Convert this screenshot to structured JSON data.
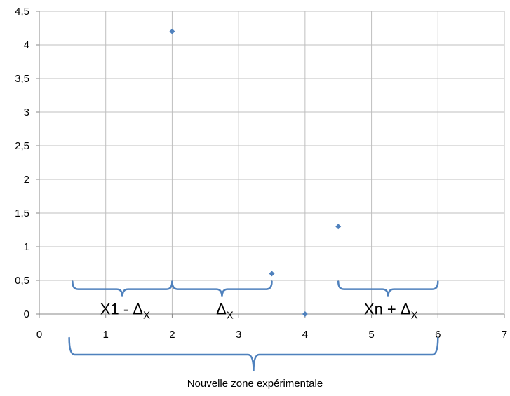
{
  "chart_data": {
    "type": "scatter",
    "title": "",
    "xlabel": "",
    "ylabel": "",
    "xlim": [
      0,
      7
    ],
    "ylim": [
      0,
      4.5
    ],
    "x_ticks": [
      0,
      1,
      2,
      3,
      4,
      5,
      6,
      7
    ],
    "y_ticks": [
      0,
      0.5,
      1,
      1.5,
      2,
      2.5,
      3,
      3.5,
      4,
      4.5
    ],
    "x_tick_labels": [
      "0",
      "1",
      "2",
      "3",
      "4",
      "5",
      "6",
      "7"
    ],
    "y_tick_labels": [
      "0",
      "0,5",
      "1",
      "1,5",
      "2",
      "2,5",
      "3",
      "3,5",
      "4",
      "4,5"
    ],
    "grid": "vertical and horizontal",
    "marker": "diamond",
    "colors": {
      "points": "#4f81bd",
      "braces": "#4f81bd",
      "grid": "#bfbfbf"
    },
    "series": [
      {
        "x": [
          2,
          3.5,
          4,
          4.5
        ],
        "y": [
          4.2,
          0.6,
          0,
          1.3
        ]
      }
    ],
    "annotations": [
      {
        "type": "brace",
        "x_start": 0.5,
        "x_end": 2,
        "y": 0.4,
        "text": "X1 - Δ",
        "subscript": "X"
      },
      {
        "type": "brace",
        "x_start": 2,
        "x_end": 3.5,
        "y": 0.4,
        "text": "Δ",
        "subscript": "X"
      },
      {
        "type": "brace",
        "x_start": 4.5,
        "x_end": 6,
        "y": 0.4,
        "text": "Xn + Δ",
        "subscript": "X"
      }
    ],
    "bottom_brace": {
      "x_start": 0.45,
      "x_end": 6,
      "text": "Nouvelle zone expérimentale"
    }
  }
}
